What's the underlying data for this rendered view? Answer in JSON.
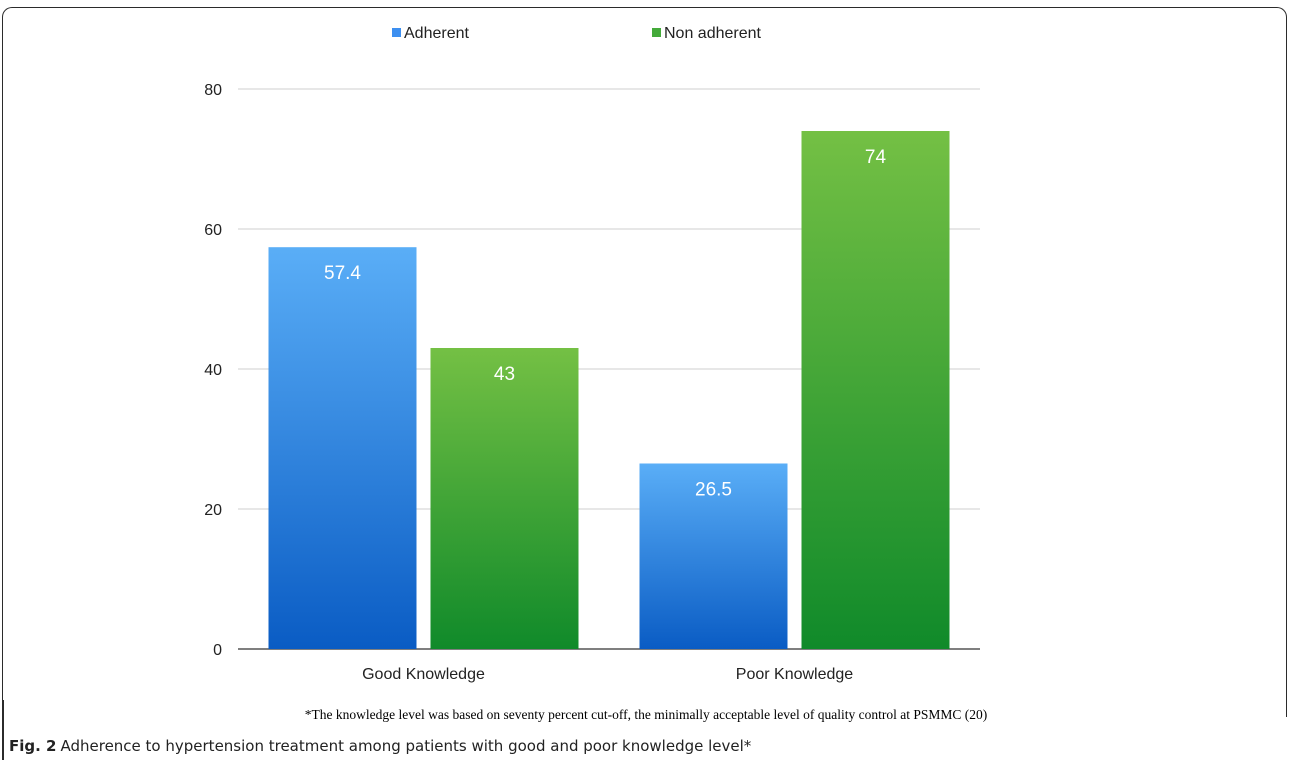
{
  "chart_data": {
    "type": "bar",
    "categories": [
      "Good Knowledge",
      "Poor Knowledge"
    ],
    "series": [
      {
        "name": "Adherent",
        "values": [
          57.4,
          26.5
        ],
        "labels": [
          "57.4",
          "26.5"
        ],
        "color": "#3d8ff0"
      },
      {
        "name": "Non adherent",
        "values": [
          43,
          74
        ],
        "labels": [
          "43",
          "74"
        ],
        "color": "#44aa3a"
      }
    ],
    "yticks": [
      0,
      20,
      40,
      60,
      80
    ],
    "ylim": [
      0,
      80
    ],
    "grid": true,
    "legend_position": "top-center",
    "title": "",
    "xlabel": "",
    "ylabel": ""
  },
  "footnote": "*The knowledge level was based on seventy percent cut-off, the minimally acceptable level of quality control at PSMMC (20)",
  "caption": {
    "label": "Fig. 2",
    "text": "Adherence to hypertension treatment among patients with good and poor knowledge level*"
  }
}
